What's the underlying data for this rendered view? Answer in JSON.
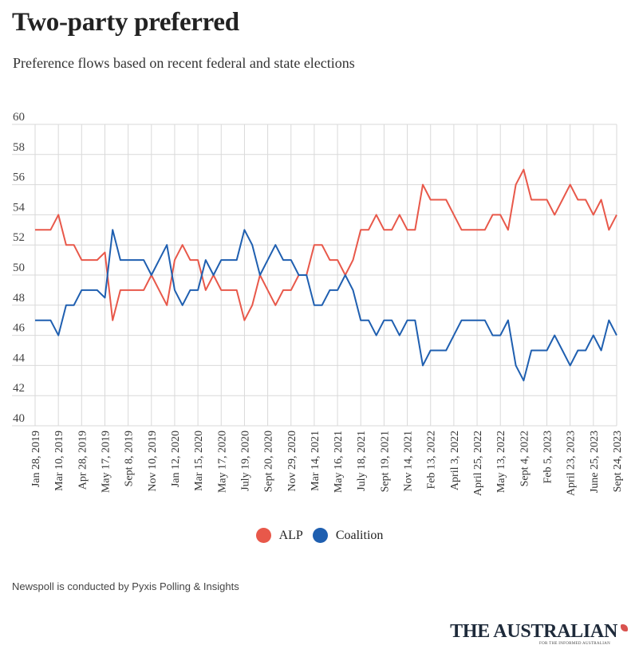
{
  "title": "Two-party preferred",
  "subtitle": "Preference flows based on recent federal and state elections",
  "source": "Newspoll is conducted by Pyxis Polling & Insights",
  "brand": {
    "name": "THE AUSTRALIAN",
    "tagline": "FOR THE INFORMED AUSTRALIAN",
    "icon": "map-of-australia-icon"
  },
  "chart_data": {
    "type": "line",
    "title": "Two-party preferred",
    "ylim": [
      40,
      60
    ],
    "yticks": [
      40,
      42,
      44,
      46,
      48,
      50,
      52,
      54,
      56,
      58,
      60
    ],
    "grid": true,
    "legend_position": "bottom-center",
    "x_tick_labels": [
      "Jan 28, 2019",
      "Mar 10, 2019",
      "Apr 28, 2019",
      "May 17, 2019",
      "Sept 8, 2019",
      "Nov 10, 2019",
      "Jan 12, 2020",
      "Mar 15, 2020",
      "May 17, 2020",
      "July 19, 2020",
      "Sept 20, 2020",
      "Nov 29, 2020",
      "Mar 14, 2021",
      "May 16, 2021",
      "July 18, 2021",
      "Sept 19, 2021",
      "Nov 14, 2021",
      "Feb 13, 2022",
      "April 3, 2022",
      "April 25, 2022",
      "May 13, 2022",
      "Sept 4, 2022",
      "Feb 5, 2023",
      "April 23, 2023",
      "June 25, 2023",
      "Sept 24, 2023"
    ],
    "series": [
      {
        "name": "ALP",
        "color": "#e8584a",
        "values": [
          53,
          53,
          53,
          54,
          52,
          52,
          51,
          51,
          51,
          51.5,
          47,
          49,
          49,
          49,
          49,
          50,
          49,
          48,
          51,
          52,
          51,
          51,
          49,
          50,
          49,
          49,
          49,
          47,
          48,
          50,
          49,
          48,
          49,
          49,
          50,
          50,
          52,
          52,
          51,
          51,
          50,
          51,
          53,
          53,
          54,
          53,
          53,
          54,
          53,
          53,
          56,
          55,
          55,
          55,
          54,
          53,
          53,
          53,
          53,
          54,
          54,
          53,
          56,
          57,
          55,
          55,
          55,
          54,
          55,
          56,
          55,
          55,
          54,
          55,
          53,
          54
        ]
      },
      {
        "name": "Coalition",
        "color": "#1f5fb0",
        "values": [
          47,
          47,
          47,
          46,
          48,
          48,
          49,
          49,
          49,
          48.5,
          53,
          51,
          51,
          51,
          51,
          50,
          51,
          52,
          49,
          48,
          49,
          49,
          51,
          50,
          51,
          51,
          51,
          53,
          52,
          50,
          51,
          52,
          51,
          51,
          50,
          50,
          48,
          48,
          49,
          49,
          50,
          49,
          47,
          47,
          46,
          47,
          47,
          46,
          47,
          47,
          44,
          45,
          45,
          45,
          46,
          47,
          47,
          47,
          47,
          46,
          46,
          47,
          44,
          43,
          45,
          45,
          45,
          46,
          45,
          44,
          45,
          45,
          46,
          45,
          47,
          46
        ]
      }
    ]
  }
}
